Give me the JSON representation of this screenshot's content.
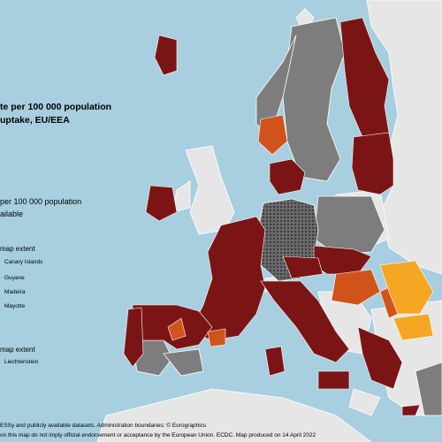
{
  "title": {
    "line1": "te per 100 000 population",
    "line2": "uptake, EU/EEA"
  },
  "legend": {
    "item1": "per 100 000 population",
    "item2": "ailable"
  },
  "inset_map_extent": {
    "heading": "map extent",
    "items": [
      "Canary Islands",
      "Guyane",
      "Madeira",
      "Mayotte"
    ]
  },
  "inset_map_extent_2": {
    "heading": "map extent",
    "items": [
      "Liechtenstein"
    ]
  },
  "footer": {
    "line1": "ESSy and publicly available datasets. Administration boundaries: © Eurographics",
    "line2": "on this map do not imply official endorsement or acceptance by the European Union. ECDC. Map produced on 14 April 2022"
  },
  "colors": {
    "sea": "#a7cfe0",
    "dark_red": "#7b1515",
    "orange": "#d1531c",
    "light_orange": "#f5a623",
    "gray_no_data": "#7d7d7d",
    "non_eu": "#e6e6e6",
    "hatched_pattern": "#444444"
  }
}
